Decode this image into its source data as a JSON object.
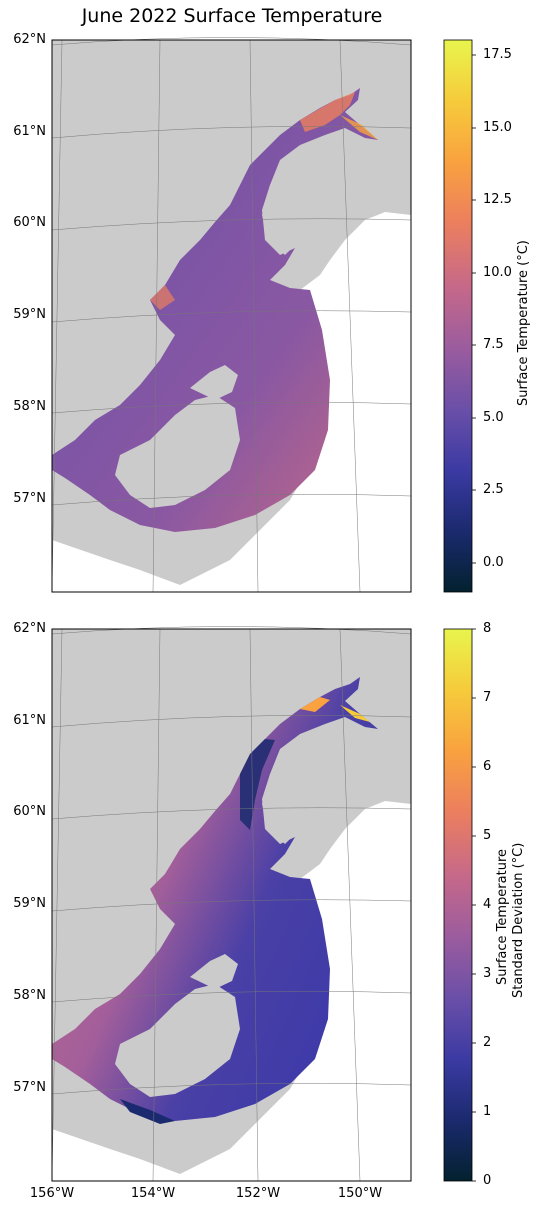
{
  "title": "June 2022 Surface Temperature",
  "colors": {
    "land": "#cbcbcb",
    "graticule": "#777777",
    "cmap": [
      "#03212f",
      "#1b2a6e",
      "#3b3aa3",
      "#6a4fa8",
      "#9a5c9e",
      "#c5688a",
      "#ec7f5e",
      "#f9a23f",
      "#f6cb3b",
      "#e8f54d"
    ]
  },
  "maps": [
    {
      "name": "mean-temperature",
      "lat_labels": [
        "62°N",
        "61°N",
        "60°N",
        "59°N",
        "58°N",
        "57°N"
      ],
      "colorbar": {
        "label": "Surface Temperature (°C)",
        "label_line2": "",
        "range": [
          -1,
          18
        ],
        "ticks": [
          "17.5",
          "15.0",
          "12.5",
          "10.0",
          "7.5",
          "5.0",
          "2.5",
          "0.0"
        ]
      }
    },
    {
      "name": "std-temperature",
      "lat_labels": [
        "62°N",
        "61°N",
        "60°N",
        "59°N",
        "58°N",
        "57°N"
      ],
      "colorbar": {
        "label": "Surface Temperature",
        "label_line2": "Standard Deviation (°C)",
        "range": [
          0,
          8
        ],
        "ticks": [
          "8",
          "7",
          "6",
          "5",
          "4",
          "3",
          "2",
          "1",
          "0"
        ]
      }
    }
  ],
  "lon_labels": [
    "156°W",
    "154°W",
    "152°W",
    "150°W"
  ]
}
